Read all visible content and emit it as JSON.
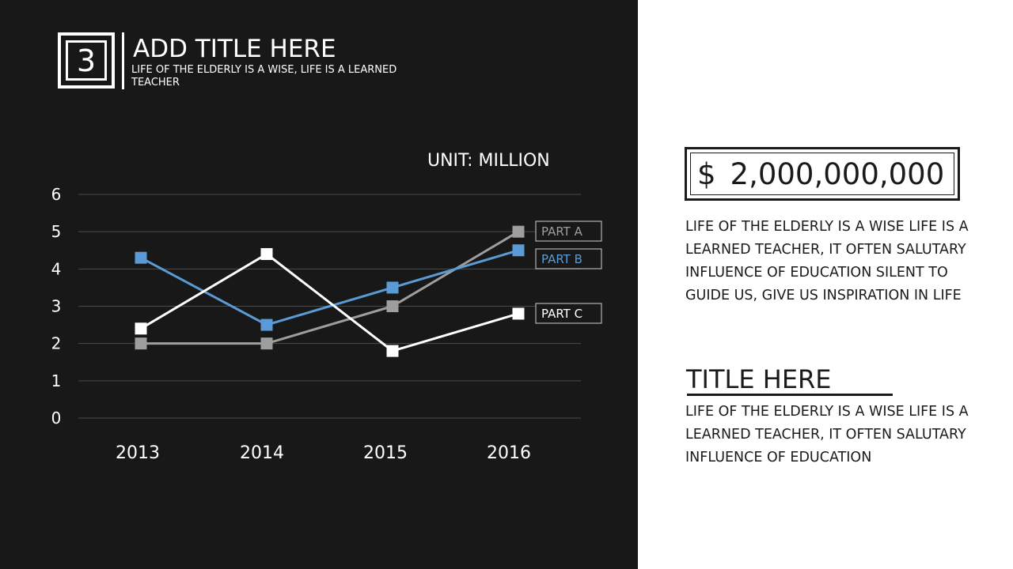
{
  "slide": {
    "number": "3",
    "title": "ADD TITLE HERE",
    "subtitle": "LIFE OF THE ELDERLY IS A WISE, LIFE IS A LEARNED TEACHER"
  },
  "chart_data": {
    "type": "line",
    "title": "",
    "unit_label": "UNIT: MILLION",
    "xlabel": "",
    "ylabel": "",
    "categories": [
      "2013",
      "2014",
      "2015",
      "2016"
    ],
    "ylim": [
      0,
      6
    ],
    "yticks": [
      "0",
      "1",
      "2",
      "3",
      "4",
      "5",
      "6"
    ],
    "grid": true,
    "legend": "inline-right",
    "series": [
      {
        "name": "PART A",
        "values": [
          2,
          2,
          3,
          5
        ],
        "color": "#9e9e9e"
      },
      {
        "name": "PART B",
        "values": [
          4.3,
          2.5,
          3.5,
          4.5
        ],
        "color": "#5b9bd5"
      },
      {
        "name": "PART C",
        "values": [
          2.4,
          4.4,
          1.8,
          2.8
        ],
        "color": "#ffffff"
      }
    ]
  },
  "sidebar": {
    "amount_currency": "$",
    "amount_value": "2,000,000,000",
    "description": "LIFE OF THE ELDERLY IS A WISE LIFE IS A LEARNED TEACHER, IT OFTEN SALUTARY INFLUENCE OF EDUCATION SILENT TO GUIDE US, GIVE US INSPIRATION IN LIFE",
    "section_title": "TITLE HERE",
    "section_text": "LIFE OF THE ELDERLY IS A WISE LIFE IS A LEARNED TEACHER, IT OFTEN SALUTARY INFLUENCE OF EDUCATION"
  }
}
